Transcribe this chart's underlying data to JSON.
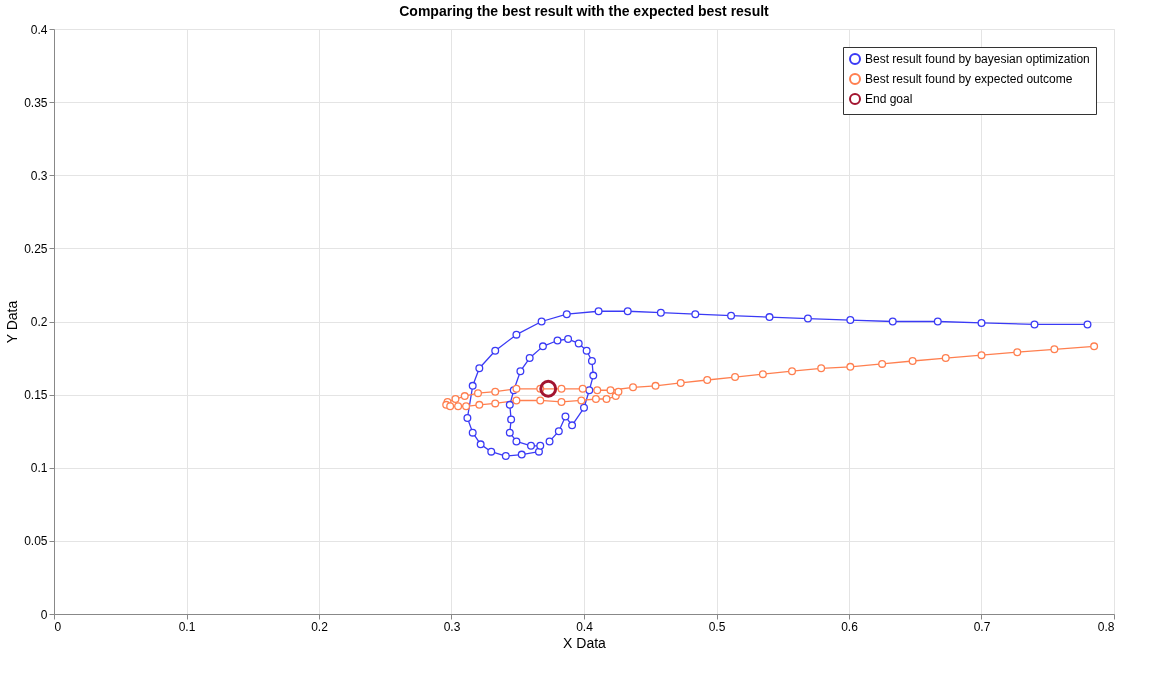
{
  "chart_data": {
    "type": "line",
    "title": "Comparing the best result with the expected best result",
    "xlabel": "X Data",
    "ylabel": "Y Data",
    "xlim": [
      0,
      0.8
    ],
    "ylim": [
      0,
      0.4
    ],
    "xticks": [
      0,
      0.1,
      0.2,
      0.3,
      0.4,
      0.5,
      0.6,
      0.7,
      0.8
    ],
    "yticks": [
      0,
      0.05,
      0.1,
      0.15,
      0.2,
      0.25,
      0.3,
      0.35,
      0.4
    ],
    "grid": true,
    "legend": "top right",
    "marker": "circle",
    "line_style": "solid",
    "series": [
      {
        "name": "Best result found by bayesian optimization",
        "color": "#3a3af5",
        "x": [
          0.78,
          0.74,
          0.7,
          0.667,
          0.633,
          0.601,
          0.569,
          0.54,
          0.511,
          0.484,
          0.458,
          0.433,
          0.411,
          0.387,
          0.368,
          0.349,
          0.333,
          0.321,
          0.316,
          0.312,
          0.316,
          0.322,
          0.33,
          0.341,
          0.353,
          0.366,
          0.367,
          0.36,
          0.349,
          0.344,
          0.345,
          0.344,
          0.347,
          0.352,
          0.359,
          0.369,
          0.38,
          0.388,
          0.396,
          0.402,
          0.406,
          0.407,
          0.404,
          0.4,
          0.391,
          0.386,
          0.381,
          0.374
        ],
        "values": [
          0.198,
          0.198,
          0.199,
          0.2,
          0.2,
          0.201,
          0.202,
          0.203,
          0.204,
          0.205,
          0.206,
          0.207,
          0.207,
          0.205,
          0.2,
          0.191,
          0.18,
          0.168,
          0.156,
          0.134,
          0.124,
          0.116,
          0.111,
          0.108,
          0.109,
          0.111,
          0.115,
          0.115,
          0.118,
          0.124,
          0.133,
          0.143,
          0.153,
          0.166,
          0.175,
          0.183,
          0.187,
          0.188,
          0.185,
          0.18,
          0.173,
          0.163,
          0.153,
          0.141,
          0.129,
          0.135,
          0.125,
          0.118
        ]
      },
      {
        "name": "Best result found by expected outcome",
        "color": "#ff7f4f",
        "x": [
          0.785,
          0.755,
          0.727,
          0.7,
          0.673,
          0.648,
          0.625,
          0.601,
          0.579,
          0.557,
          0.535,
          0.514,
          0.493,
          0.473,
          0.454,
          0.437,
          0.42,
          0.41,
          0.399,
          0.383,
          0.367,
          0.349,
          0.333,
          0.32,
          0.31,
          0.303,
          0.297,
          0.296,
          0.299,
          0.305,
          0.311,
          0.321,
          0.333,
          0.349,
          0.367,
          0.383,
          0.398,
          0.409,
          0.417,
          0.424,
          0.426
        ],
        "values": [
          0.183,
          0.181,
          0.179,
          0.177,
          0.175,
          0.173,
          0.171,
          0.169,
          0.168,
          0.166,
          0.164,
          0.162,
          0.16,
          0.158,
          0.156,
          0.155,
          0.153,
          0.153,
          0.154,
          0.154,
          0.154,
          0.154,
          0.152,
          0.151,
          0.149,
          0.147,
          0.145,
          0.143,
          0.142,
          0.142,
          0.142,
          0.143,
          0.144,
          0.146,
          0.146,
          0.145,
          0.146,
          0.147,
          0.147,
          0.149,
          0.152
        ]
      },
      {
        "name": "End goal",
        "color": "#a2142f",
        "type": "scatter",
        "x": [
          0.373
        ],
        "values": [
          0.154
        ]
      }
    ]
  }
}
